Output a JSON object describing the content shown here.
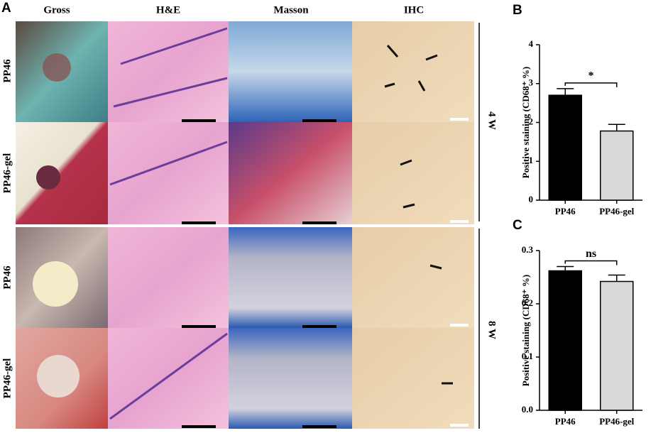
{
  "panel_a": {
    "label": "A",
    "columns": [
      "Gross",
      "H&E",
      "Masson",
      "IHC"
    ],
    "rows": [
      "PP46",
      "PP46-gel",
      "PP46",
      "PP46-gel"
    ],
    "times": [
      "4 W",
      "8 W"
    ]
  },
  "chart_data": [
    {
      "type": "bar",
      "panel": "B",
      "y_label": "Positive staining (CD68⁺ %)",
      "categories": [
        "PP46",
        "PP46-gel"
      ],
      "values": [
        2.7,
        1.78
      ],
      "errors": [
        0.17,
        0.17
      ],
      "colors": [
        "#000000",
        "#d9d9d9"
      ],
      "ylim": [
        0,
        4
      ],
      "yticks": [
        0,
        1,
        2,
        3,
        4
      ],
      "annotation": "*"
    },
    {
      "type": "bar",
      "panel": "C",
      "y_label": "Positive staining (CD68⁺ %)",
      "categories": [
        "PP46",
        "PP46-gel"
      ],
      "values": [
        0.262,
        0.242
      ],
      "errors": [
        0.008,
        0.012
      ],
      "colors": [
        "#000000",
        "#d9d9d9"
      ],
      "ylim": [
        0,
        0.3
      ],
      "yticks": [
        {
          "value": 0,
          "label": "0.0"
        },
        0.1,
        0.2,
        0.3
      ],
      "annotation": "ns"
    }
  ]
}
